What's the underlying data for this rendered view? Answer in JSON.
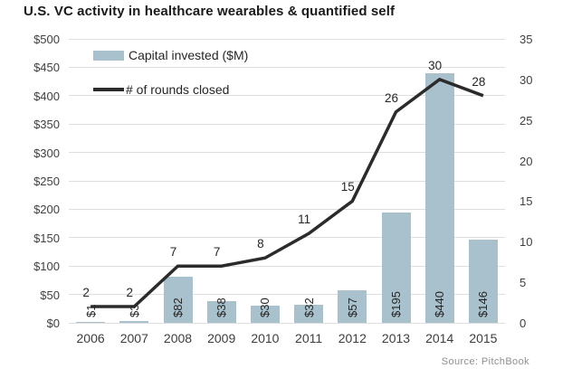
{
  "title": "U.S. VC activity in healthcare wearables & quantified self",
  "source": "Source: PitchBook",
  "legend": [
    {
      "label": "Capital invested ($M)",
      "swatch": "bar-swatch"
    },
    {
      "label": "# of rounds closed",
      "swatch": "line-swatch"
    }
  ],
  "colors": {
    "bar_fill": "#a8c1cc",
    "line": "#2b2b2b",
    "gridline": "#dedede",
    "axis_text": "#404040"
  },
  "chart_data": {
    "type": "bar+line combo",
    "title": "U.S. VC activity in healthcare wearables & quantified self",
    "categories": [
      "2006",
      "2007",
      "2008",
      "2009",
      "2010",
      "2011",
      "2012",
      "2013",
      "2014",
      "2015"
    ],
    "series": [
      {
        "name": "Capital invested ($M)",
        "type": "bar",
        "axis": "left",
        "values": [
          1,
          3,
          82,
          38,
          30,
          32,
          57,
          195,
          440,
          146
        ],
        "data_labels": [
          "$1",
          "$3",
          "$82",
          "$38",
          "$30",
          "$32",
          "$57",
          "$195",
          "$440",
          "$146"
        ]
      },
      {
        "name": "# of rounds closed",
        "type": "line",
        "axis": "right",
        "values": [
          2,
          2,
          7,
          7,
          8,
          11,
          15,
          26,
          30,
          28
        ],
        "data_labels": [
          "2",
          "2",
          "7",
          "7",
          "8",
          "11",
          "15",
          "26",
          "30",
          "28"
        ]
      }
    ],
    "left_axis": {
      "min": 0,
      "max": 500,
      "step": 50,
      "tick_labels": [
        "$0",
        "$50",
        "$100",
        "$150",
        "$200",
        "$250",
        "$300",
        "$350",
        "$400",
        "$450",
        "$500"
      ]
    },
    "right_axis": {
      "min": 0,
      "max": 35,
      "step": 5,
      "tick_labels": [
        "0",
        "5",
        "10",
        "15",
        "20",
        "25",
        "30",
        "35"
      ]
    },
    "grid": true,
    "legend_position": "top-left-inside"
  }
}
